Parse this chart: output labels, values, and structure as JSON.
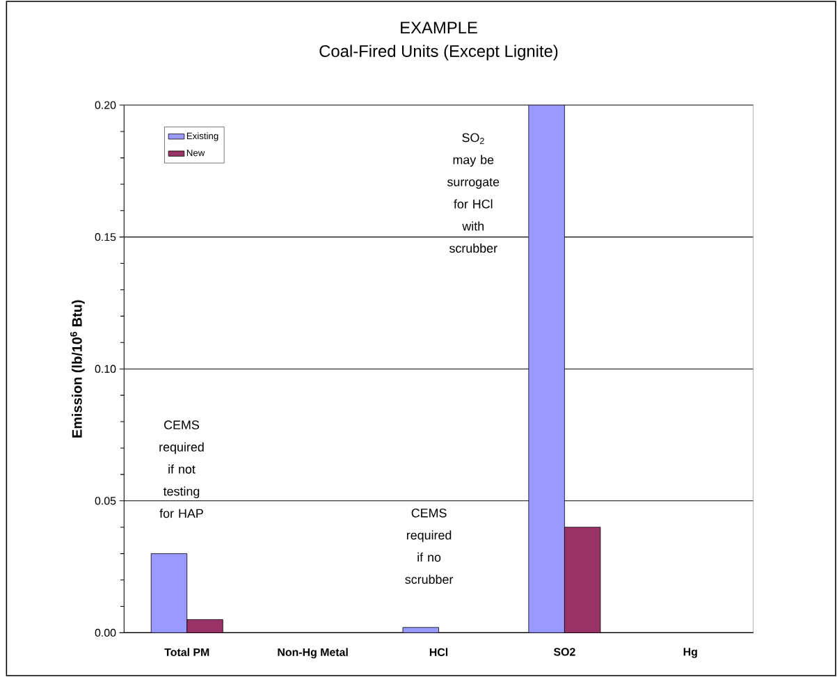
{
  "chart_data": {
    "type": "bar",
    "title": "EXAMPLE",
    "subtitle": "Coal-Fired Units (Except Lignite)",
    "ylabel": "Emission (lb/10$^{6}$ Btu)",
    "categories": [
      "Total PM",
      "Non-Hg Metal",
      "HCl",
      "SO2",
      "Hg"
    ],
    "series": [
      {
        "name": "Existing",
        "color": "#9999ff",
        "values": [
          0.03,
          null,
          0.002,
          0.2,
          null
        ]
      },
      {
        "name": "New",
        "color": "#993366",
        "values": [
          0.005,
          null,
          null,
          0.04,
          null
        ]
      }
    ],
    "ylim": [
      0,
      0.2
    ],
    "yticks": [
      {
        "value": 0,
        "label": "0.00"
      },
      {
        "value": 0.05,
        "label": "0.05"
      },
      {
        "value": 0.1,
        "label": "0.10"
      },
      {
        "value": 0.15,
        "label": "0.15"
      },
      {
        "value": 0.2,
        "label": "0.20"
      }
    ],
    "grid": "y",
    "legend": "top left",
    "annotations": [
      "CEMS required if not testing for HAP",
      "CEMS required if no scrubber",
      "SO$_{2}$ may be surrogate for HCl with scrubber"
    ]
  }
}
